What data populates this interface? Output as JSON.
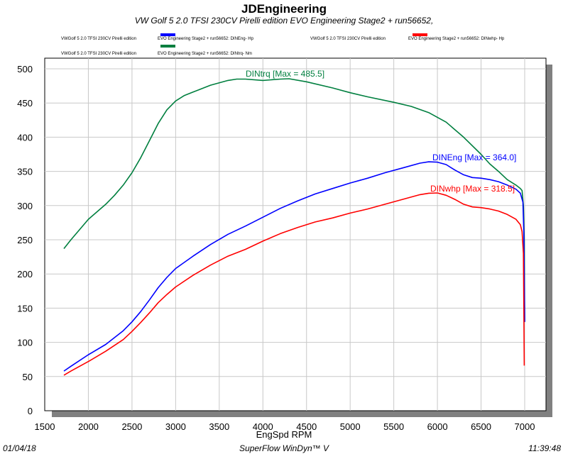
{
  "chart_data": {
    "type": "line",
    "title": "JDEngineering",
    "subtitle": "VW Golf 5 2.0 TFSI 230CV  Pirelli edition     EVO Engineering   Stage2 + run56652,",
    "xlabel": "EngSpd  RPM",
    "ylabel": "",
    "xlim": [
      1500,
      7200
    ],
    "ylim": [
      0,
      520
    ],
    "x_ticks": [
      "1500",
      "2000",
      "2500",
      "3000",
      "3500",
      "4000",
      "4500",
      "5000",
      "5500",
      "6000",
      "6500",
      "7000"
    ],
    "y_ticks": [
      "0",
      "50",
      "100",
      "150",
      "200",
      "250",
      "300",
      "350",
      "400",
      "450",
      "500"
    ],
    "grid": true,
    "legend": [
      {
        "left": "VWGolf 5 2.0 TFSI 230CV  Pirelli edition",
        "right": "EVO Engineering   Stage2 + run56652: DINEng- Hp",
        "color": "#0000ff"
      },
      {
        "left": "VWGolf 5 2.0 TFSI 230CV  Pirelli edition",
        "right": "EVO Engineering   Stage2 + run56652: DINwhp- Hp",
        "color": "#ff0000"
      },
      {
        "left": "VWGolf 5 2.0 TFSI 230CV  Pirelli edition",
        "right": "EVO Engineering   Stage2 + run56652: DINtrq- Nm",
        "color": "#007f3f"
      }
    ],
    "series": [
      {
        "name": "DINtrq",
        "color": "#007f3f",
        "annotation": "DINtrq [Max = 485.5]",
        "x": [
          1720,
          1800,
          2000,
          2200,
          2300,
          2400,
          2500,
          2600,
          2700,
          2800,
          2900,
          3000,
          3100,
          3200,
          3400,
          3600,
          3700,
          3800,
          4000,
          4200,
          4300,
          4500,
          4800,
          5000,
          5200,
          5500,
          5700,
          5900,
          6100,
          6300,
          6500,
          6600,
          6700,
          6800,
          6900,
          6950,
          6970,
          6985,
          6995,
          7000
        ],
        "y": [
          237,
          250,
          280,
          302,
          315,
          330,
          348,
          370,
          395,
          420,
          440,
          453,
          461,
          466,
          476,
          483,
          485,
          485,
          483,
          485,
          485.5,
          481,
          472,
          465,
          459,
          451,
          445,
          436,
          422,
          400,
          375,
          361,
          350,
          338,
          330,
          325,
          322,
          300,
          250,
          130
        ]
      },
      {
        "name": "DINEng",
        "color": "#0000ff",
        "annotation": "DINEng [Max = 364.0]",
        "x": [
          1720,
          1800,
          2000,
          2200,
          2400,
          2500,
          2600,
          2700,
          2800,
          2900,
          3000,
          3200,
          3400,
          3600,
          3800,
          4000,
          4200,
          4400,
          4600,
          4800,
          5000,
          5200,
          5400,
          5600,
          5800,
          5900,
          6000,
          6100,
          6200,
          6300,
          6400,
          6500,
          6600,
          6700,
          6800,
          6900,
          6950,
          6980,
          6990,
          7000
        ],
        "y": [
          58,
          65,
          82,
          97,
          117,
          130,
          145,
          162,
          180,
          195,
          208,
          226,
          243,
          258,
          270,
          283,
          296,
          307,
          317,
          325,
          333,
          340,
          348,
          355,
          362,
          364,
          363.5,
          360,
          352,
          345,
          341,
          340,
          338,
          335,
          330,
          324,
          318,
          305,
          260,
          130
        ]
      },
      {
        "name": "DINwhp",
        "color": "#ff0000",
        "annotation": "DINwhp [Max = 318.5]",
        "x": [
          1720,
          1800,
          2000,
          2200,
          2400,
          2500,
          2600,
          2700,
          2800,
          2900,
          3000,
          3200,
          3400,
          3600,
          3800,
          4000,
          4200,
          4400,
          4600,
          4800,
          5000,
          5200,
          5400,
          5600,
          5800,
          5900,
          6000,
          6100,
          6200,
          6300,
          6400,
          6500,
          6600,
          6700,
          6800,
          6900,
          6950,
          6970,
          6985,
          6990,
          6995
        ],
        "y": [
          52,
          58,
          72,
          87,
          104,
          116,
          129,
          143,
          158,
          170,
          181,
          198,
          213,
          226,
          236,
          248,
          259,
          268,
          276,
          282,
          289,
          295,
          302,
          309,
          316,
          318,
          318.5,
          315,
          309,
          302,
          298,
          297,
          295,
          292,
          287,
          280,
          272,
          262,
          230,
          150,
          66
        ]
      }
    ]
  },
  "footer": {
    "date": "01/04/18",
    "software": "SuperFlow WinDyn™ V",
    "time": "11:39:48"
  }
}
